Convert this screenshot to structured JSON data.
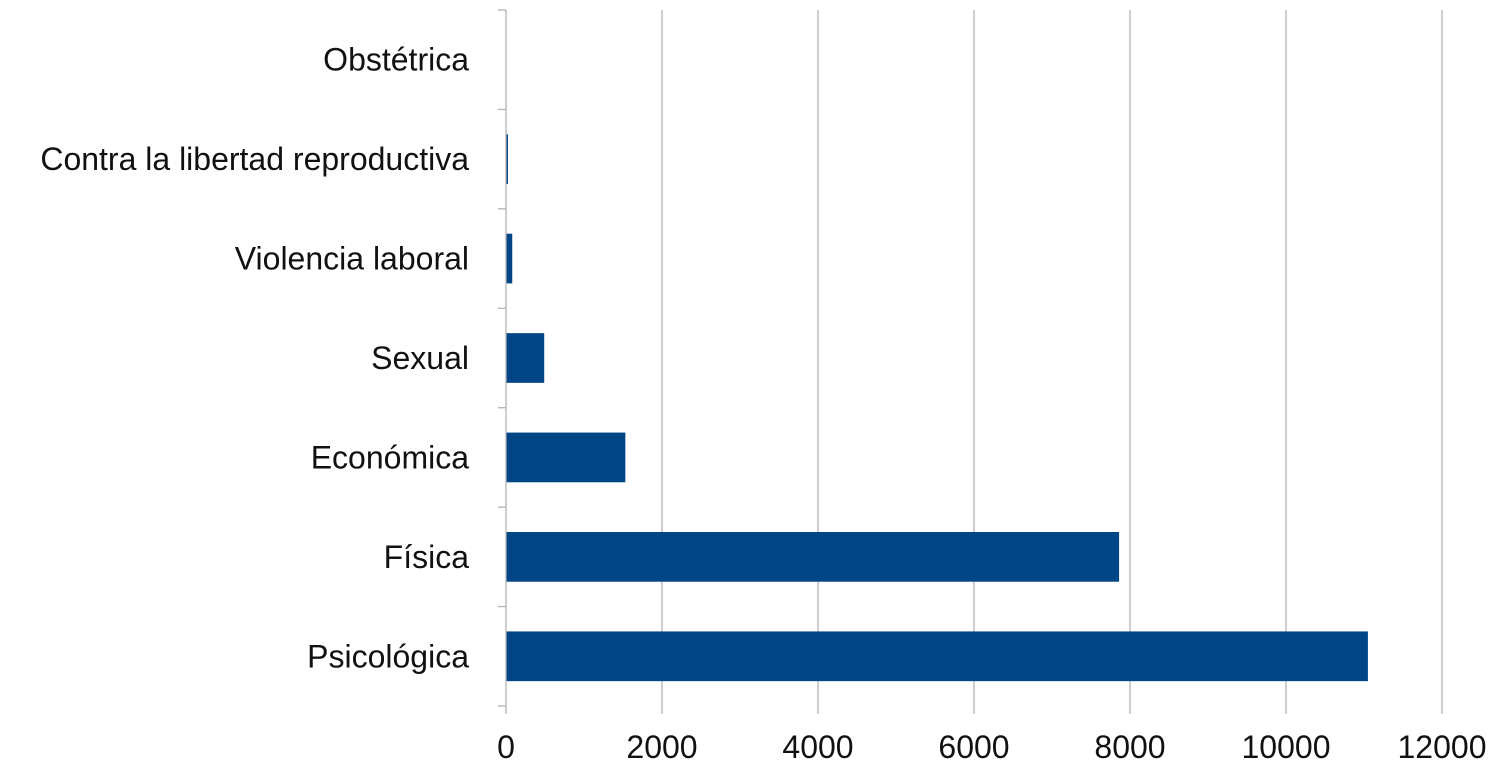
{
  "chart_data": {
    "type": "bar",
    "orientation": "horizontal",
    "categories": [
      "Obstétrica",
      "Contra la libertad reproductiva",
      "Violencia laboral",
      "Sexual",
      "Económica",
      "Física",
      "Psicológica"
    ],
    "values": [
      0,
      15,
      80,
      490,
      1530,
      7860,
      11050
    ],
    "xlim": [
      0,
      12000
    ],
    "xticks": [
      0,
      2000,
      4000,
      6000,
      8000,
      10000,
      12000
    ],
    "grid": true,
    "bar_color": "#004586",
    "title": "",
    "xlabel": "",
    "ylabel": ""
  }
}
